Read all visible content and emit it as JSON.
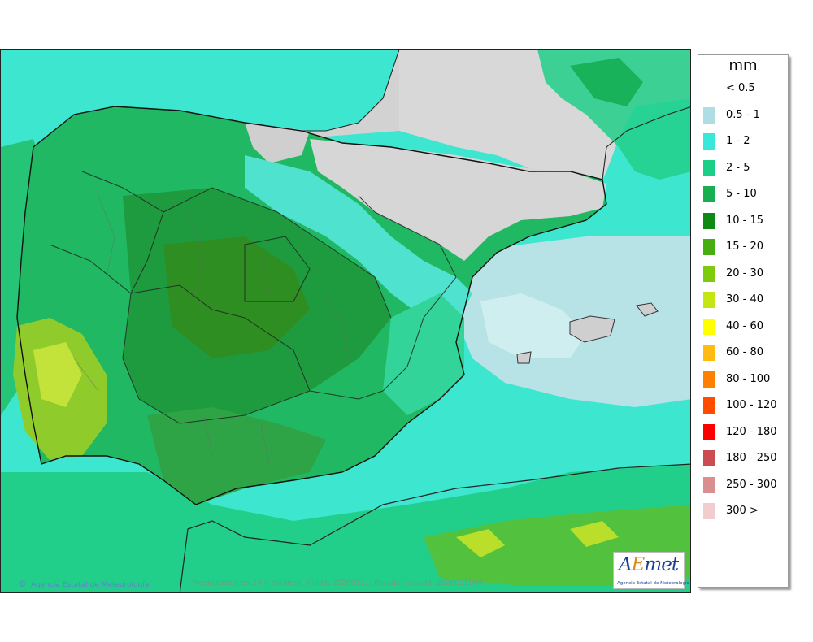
{
  "map": {
    "copyright": "Agencia Estatal de Meteorología",
    "copyright_symbol": "©",
    "caption": "Precipitación en 24 h máxima. Válido: 2026031... Pasada: pasado: 2026031900"
  },
  "logo": {
    "text_a": "A",
    "text_e": "E",
    "text_rest": "met",
    "subtitle": "Agencia Estatal de Meteorología"
  },
  "legend": {
    "title": "mm",
    "items": [
      {
        "label": "< 0.5",
        "color": "#ffffff"
      },
      {
        "label": "0.5 - 1",
        "color": "#b0dde3"
      },
      {
        "label": "1 - 2",
        "color": "#38e8d8"
      },
      {
        "label": "2 - 5",
        "color": "#1ccf88"
      },
      {
        "label": "5 - 10",
        "color": "#1aae52"
      },
      {
        "label": "10 - 15",
        "color": "#0e8a14"
      },
      {
        "label": "15 - 20",
        "color": "#48ad10"
      },
      {
        "label": "20 - 30",
        "color": "#7ecb0e"
      },
      {
        "label": "30 - 40",
        "color": "#c6e613"
      },
      {
        "label": "40 - 60",
        "color": "#ffff00"
      },
      {
        "label": "60 - 80",
        "color": "#ffbb11"
      },
      {
        "label": "80 - 100",
        "color": "#ff7f00"
      },
      {
        "label": "100 - 120",
        "color": "#ff4c00"
      },
      {
        "label": "120 - 180",
        "color": "#ff0000"
      },
      {
        "label": "180 - 250",
        "color": "#cb4d52"
      },
      {
        "label": "250 - 300",
        "color": "#d98e90"
      },
      {
        "label": "300 >",
        "color": "#f1cdd0"
      }
    ]
  }
}
